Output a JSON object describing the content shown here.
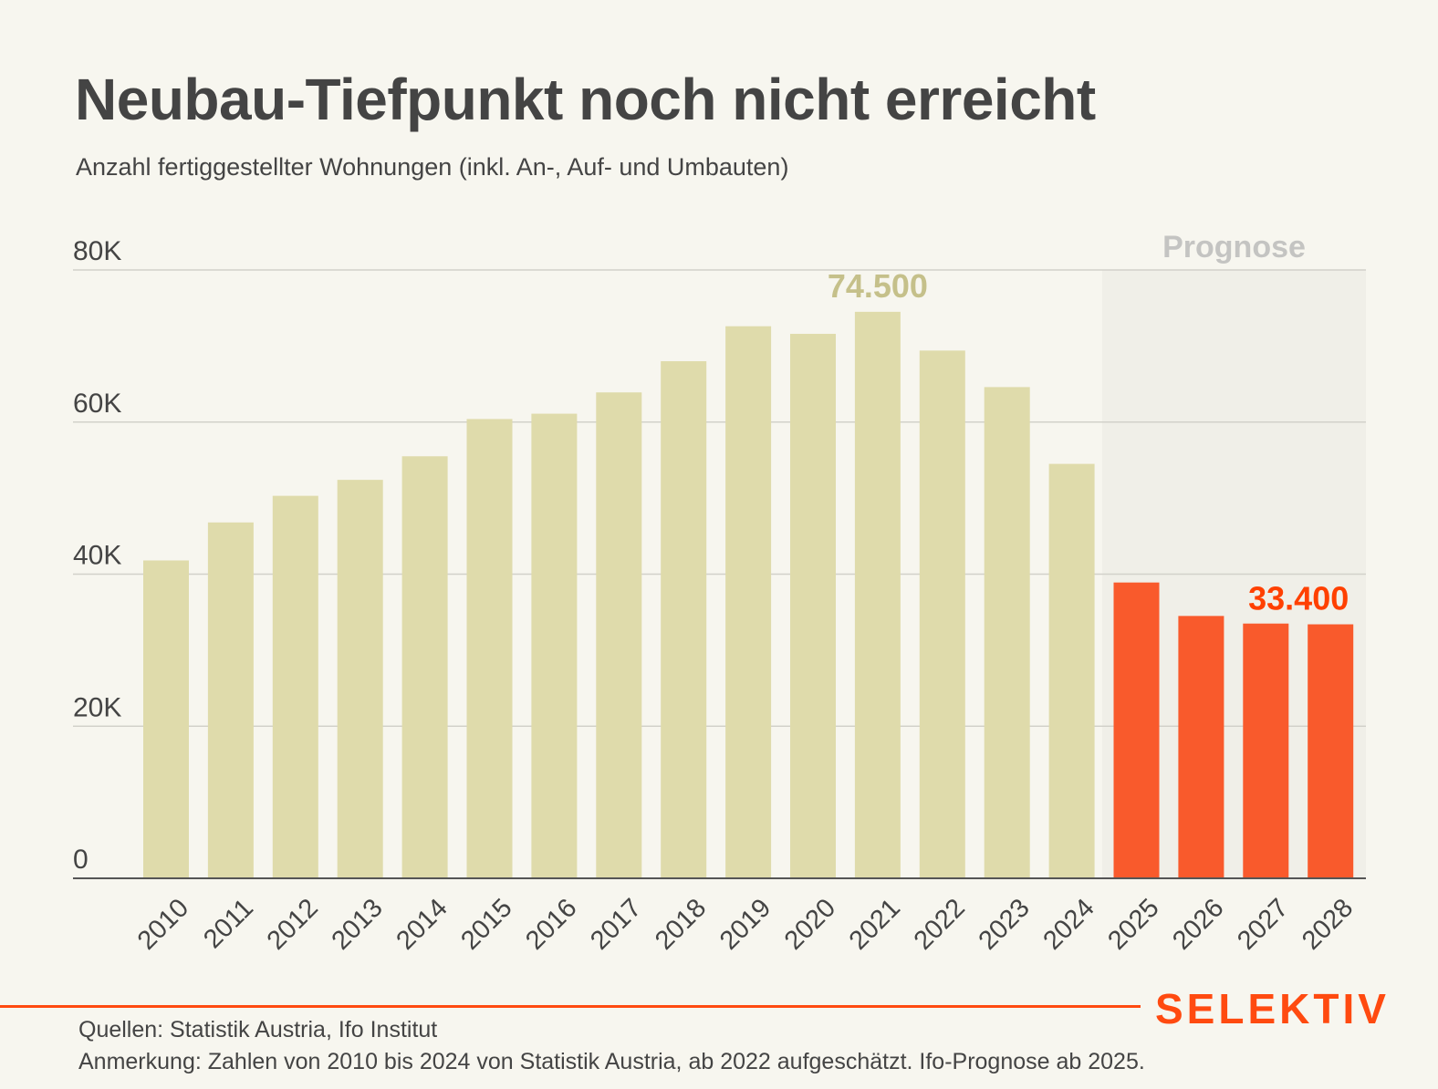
{
  "header": {
    "title": "Neubau-Tiefpunkt noch nicht erreicht",
    "subtitle": "Anzahl fertiggestellter Wohnungen (inkl. An-, Auf- und Umbauten)"
  },
  "footer": {
    "sources": "Quellen: Statistik Austria, Ifo Institut",
    "note": "Anmerkung: Zahlen von 2010 bis 2024 von Statistik Austria, ab 2022 aufgeschätzt. Ifo-Prognose ab 2025.",
    "brand": "SELEKTIV"
  },
  "colors": {
    "background": "#F7F6EF",
    "historic_bar": "#DFDBAB",
    "forecast_bar": "#F95A2C",
    "forecast_region": "#F0EFE8",
    "historic_label": "#C5C08A",
    "forecast_label": "#FF4000",
    "forecast_title": "#C4C4C2",
    "brand": "#FF4A10"
  },
  "chart_data": {
    "type": "bar",
    "title": "Neubau-Tiefpunkt noch nicht erreicht",
    "subtitle": "Anzahl fertiggestellter Wohnungen (inkl. An-, Auf- und Umbauten)",
    "xlabel": "",
    "ylabel": "",
    "categories": [
      "2010",
      "2011",
      "2012",
      "2013",
      "2014",
      "2015",
      "2016",
      "2017",
      "2018",
      "2019",
      "2020",
      "2021",
      "2022",
      "2023",
      "2024",
      "2025",
      "2026",
      "2027",
      "2028"
    ],
    "values": [
      41800,
      46800,
      50300,
      52400,
      55500,
      60400,
      61100,
      63900,
      68000,
      72600,
      71600,
      74500,
      69400,
      64600,
      54500,
      38900,
      34500,
      33500,
      33400
    ],
    "series_type": [
      "historic",
      "historic",
      "historic",
      "historic",
      "historic",
      "historic",
      "historic",
      "historic",
      "historic",
      "historic",
      "historic",
      "historic",
      "historic",
      "historic",
      "historic",
      "forecast",
      "forecast",
      "forecast",
      "forecast"
    ],
    "ylim": [
      0,
      80000
    ],
    "yticks": [
      0,
      20000,
      40000,
      60000,
      80000
    ],
    "ytick_labels": [
      "0",
      "20K",
      "40K",
      "60K",
      "80K"
    ],
    "grid": true,
    "forecast_region": {
      "label": "Prognose",
      "from": "2025",
      "to": "2028"
    },
    "annotations": [
      {
        "category": "2021",
        "text": "74.500",
        "style": "historic"
      },
      {
        "category": "2028",
        "text": "33.400",
        "style": "forecast"
      }
    ]
  }
}
